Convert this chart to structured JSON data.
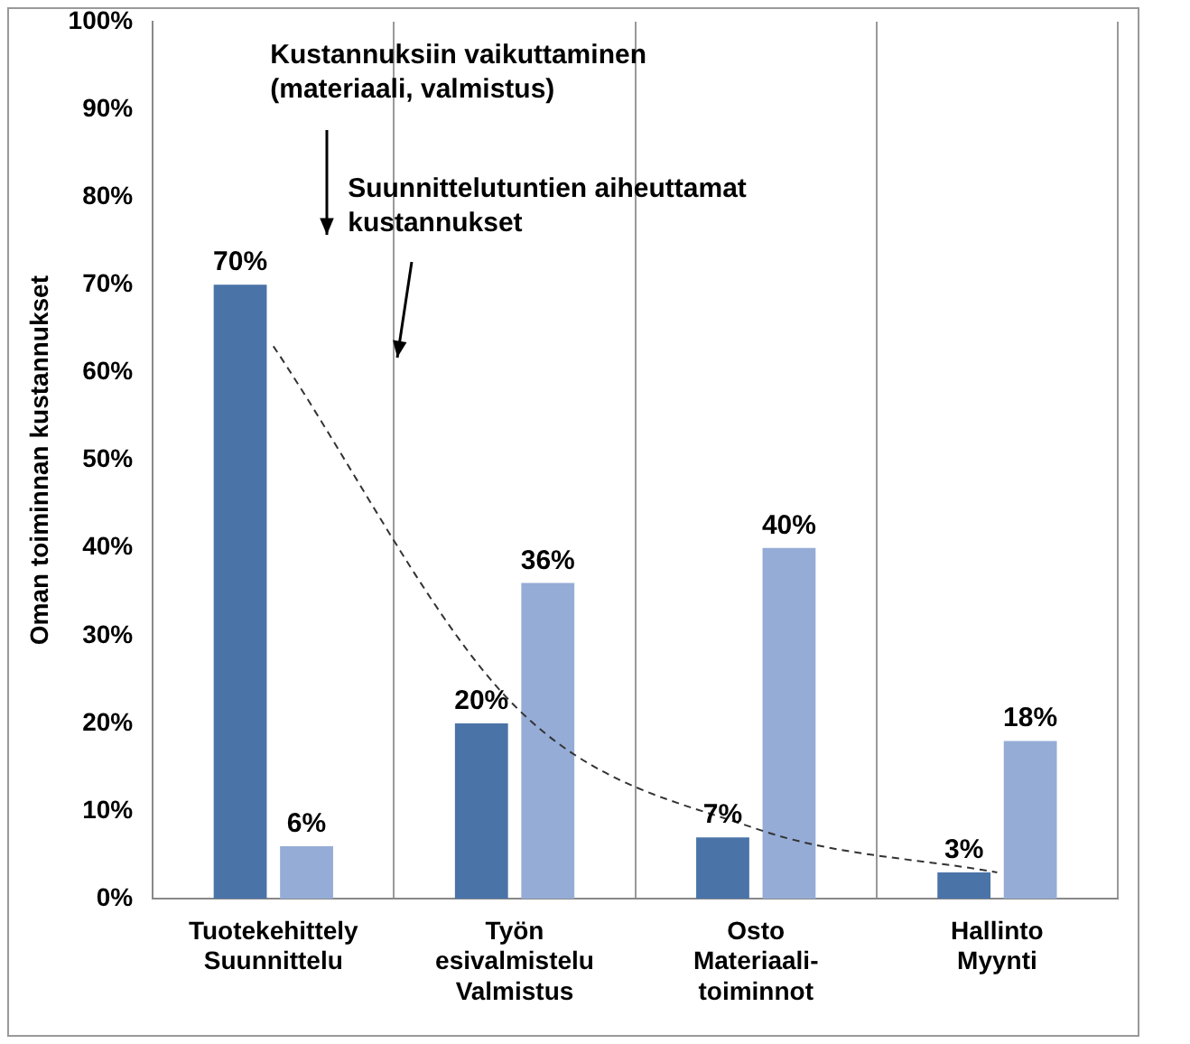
{
  "chart_data": {
    "type": "bar",
    "ylabel": "Oman toiminnan kustannukset",
    "categories": [
      "Tuotekehittely\nSuunnittelu",
      "Työn\nesivalmistelu\nValmistus",
      "Osto\nMateriaali-\ntoiminnot",
      "Hallinto\nMyynti"
    ],
    "series": [
      {
        "color": "#4a73a8",
        "values": [
          70,
          20,
          7,
          3
        ]
      },
      {
        "color": "#95acd6",
        "values": [
          6,
          36,
          40,
          18
        ]
      },
      {
        "type": "line",
        "color": "#333333",
        "line_style": "dashed",
        "marker": "none",
        "values": [
          63,
          22,
          8,
          3
        ]
      }
    ],
    "ylim": [
      0,
      100
    ],
    "yticks": [
      {
        "value": 0,
        "label": "0%"
      },
      {
        "value": 10,
        "label": "10%"
      },
      {
        "value": 20,
        "label": "20%"
      },
      {
        "value": 30,
        "label": "30%"
      },
      {
        "value": 40,
        "label": "40%"
      },
      {
        "value": 50,
        "label": "50%"
      },
      {
        "value": 60,
        "label": "60%"
      },
      {
        "value": 70,
        "label": "70%"
      },
      {
        "value": 80,
        "label": "80%"
      },
      {
        "value": 90,
        "label": "90%"
      },
      {
        "value": 100,
        "label": "100%"
      }
    ],
    "value_labels": [
      [
        "70%",
        "20%",
        "7%",
        "3%"
      ],
      [
        "6%",
        "36%",
        "40%",
        "18%"
      ],
      null
    ],
    "grid": "x",
    "legend": false,
    "annotations": [
      "Kustannuksiin vaikuttaminen\n(materiaali, valmistus)",
      "Suunnittelutuntien aiheuttamat\nkustannukset"
    ]
  }
}
